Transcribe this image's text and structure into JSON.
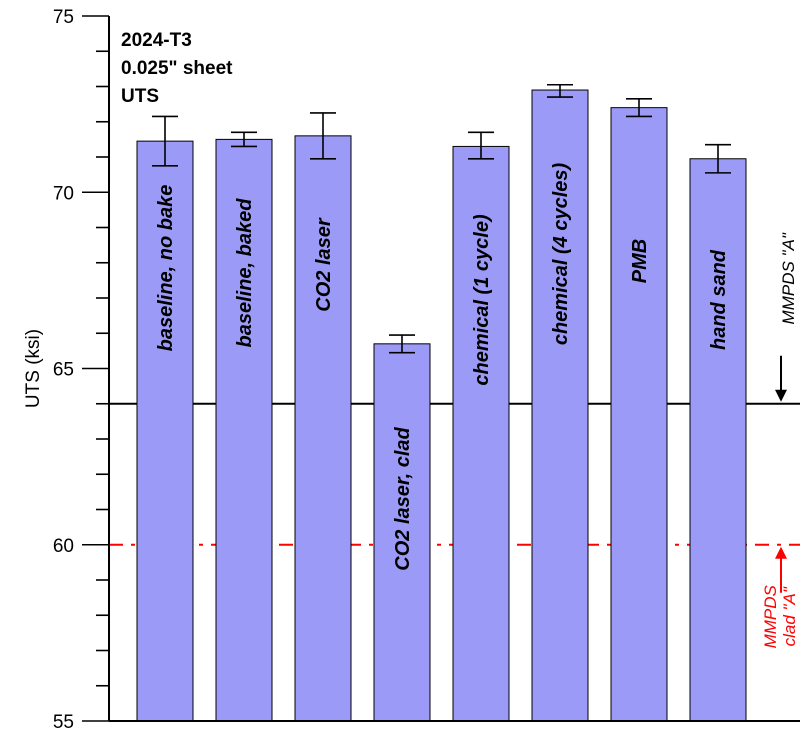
{
  "chart_data": {
    "type": "bar",
    "title_lines": [
      "2024-T3",
      "0.025\" sheet",
      "UTS"
    ],
    "ylabel": "UTS (ksi)",
    "ylim": [
      55,
      75
    ],
    "yticks_major": [
      55,
      60,
      65,
      70,
      75
    ],
    "ytick_labels": [
      "55",
      "60",
      "65",
      "70",
      "75"
    ],
    "yticks_minor_step": 1,
    "categories": [
      "baseline, no bake",
      "baseline, baked",
      "CO2 laser",
      "CO2 laser, clad",
      "chemical (1 cycle)",
      "chemical (4 cycles)",
      "PMB",
      "hand sand"
    ],
    "values": [
      71.45,
      71.5,
      71.6,
      65.7,
      71.3,
      72.9,
      72.4,
      70.95
    ],
    "error_low": [
      70.75,
      71.3,
      70.95,
      65.45,
      70.95,
      72.7,
      72.15,
      70.55
    ],
    "error_high": [
      72.15,
      71.7,
      72.25,
      65.95,
      71.7,
      73.05,
      72.65,
      71.35
    ],
    "bar_color": "#9b9bf7",
    "reference_lines": [
      {
        "value": 64,
        "label": "MMPDS \"A\"",
        "color": "#000000",
        "style": "solid"
      },
      {
        "value": 60,
        "label_lines": [
          "MMPDS",
          "clad \"A\""
        ],
        "color": "#ff0000",
        "style": "dashed"
      }
    ],
    "grid": false
  }
}
